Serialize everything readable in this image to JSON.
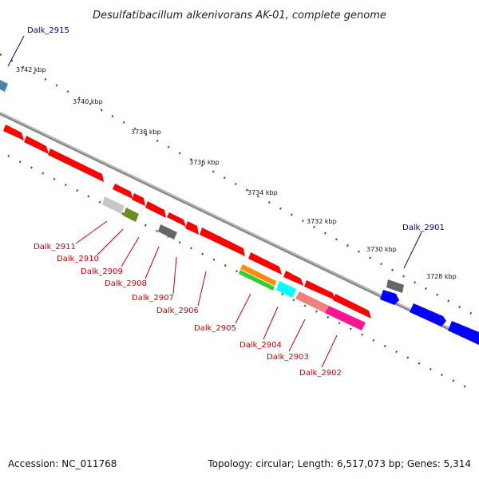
{
  "title": "Desulfatibacillum alkenivorans AK-01, complete genome",
  "accession": "Accession: NC_011768",
  "summary": "Topology: circular; Length: 6,517,073 bp; Genes: 5,314",
  "ruler": [
    "3742 kbp",
    "3740 kbp",
    "3738 kbp",
    "3736 kbp",
    "3734 kbp",
    "3732 kbp",
    "3730 kbp",
    "3728 kbp"
  ],
  "genes": [
    {
      "label": "Dalk_2915",
      "color": "#00008b"
    },
    {
      "label": "Dalk_2911",
      "color": "#cc0000"
    },
    {
      "label": "Dalk_2910",
      "color": "#cc0000"
    },
    {
      "label": "Dalk_2909",
      "color": "#cc0000"
    },
    {
      "label": "Dalk_2908",
      "color": "#cc0000"
    },
    {
      "label": "Dalk_2907",
      "color": "#cc0000"
    },
    {
      "label": "Dalk_2906",
      "color": "#cc0000"
    },
    {
      "label": "Dalk_2905",
      "color": "#cc0000"
    },
    {
      "label": "Dalk_2904",
      "color": "#cc0000"
    },
    {
      "label": "Dalk_2903",
      "color": "#cc0000"
    },
    {
      "label": "Dalk_2902",
      "color": "#cc0000"
    },
    {
      "label": "Dalk_2901",
      "color": "#00008b"
    }
  ],
  "colors": {
    "backbone": "#888888",
    "tick": "#1a7a1a",
    "red": "#ff0000",
    "blue": "#0000ff",
    "gray": "#666666",
    "lightgray": "#c8c8c8",
    "olive": "#6b8e23",
    "orange": "#ff8c00",
    "green": "#33cc33",
    "cyan": "#00ffff",
    "salmon": "#f08080",
    "magenta": "#ff1493",
    "steel": "#4682b4"
  }
}
